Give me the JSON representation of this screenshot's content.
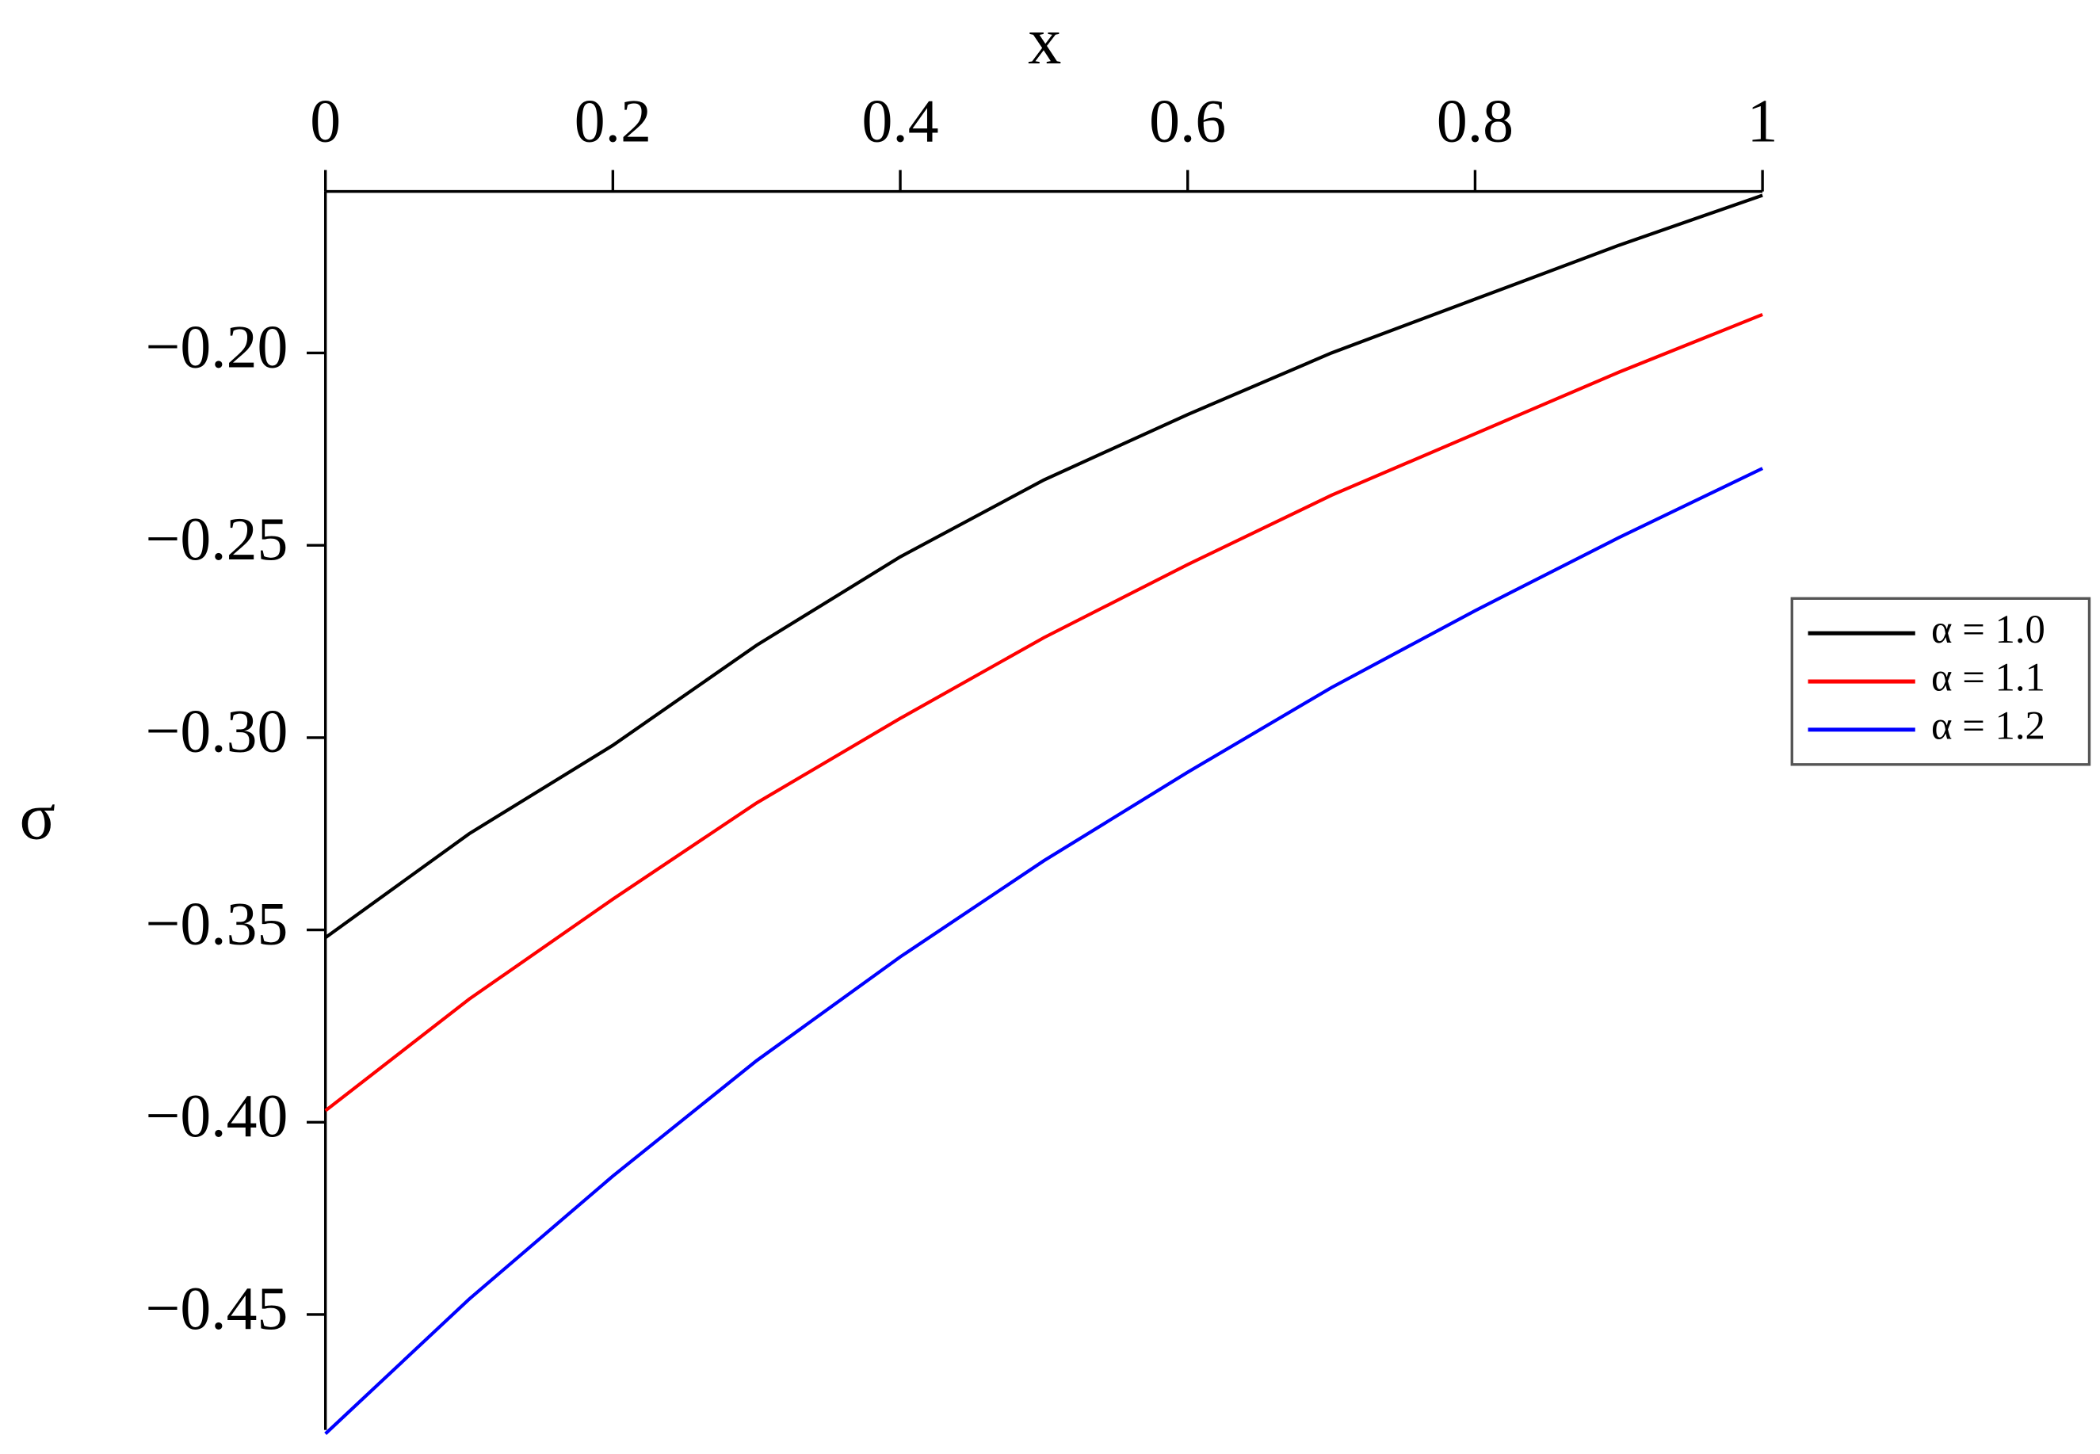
{
  "chart_data": {
    "type": "line",
    "xlabel": "x",
    "ylabel": "σ",
    "x": [
      0,
      0.1,
      0.2,
      0.3,
      0.4,
      0.5,
      0.6,
      0.7,
      0.8,
      0.9,
      1
    ],
    "series": [
      {
        "name": "α = 1.0",
        "color": "#000000",
        "values": [
          -0.352,
          -0.325,
          -0.302,
          -0.276,
          -0.253,
          -0.233,
          -0.216,
          -0.2,
          -0.186,
          -0.172,
          -0.159
        ]
      },
      {
        "name": "α = 1.1",
        "color": "#ff0000",
        "values": [
          -0.397,
          -0.368,
          -0.342,
          -0.317,
          -0.295,
          -0.274,
          -0.255,
          -0.237,
          -0.221,
          -0.205,
          -0.19
        ]
      },
      {
        "name": "α = 1.2",
        "color": "#0000ff",
        "values": [
          -0.481,
          -0.446,
          -0.414,
          -0.384,
          -0.357,
          -0.332,
          -0.309,
          -0.287,
          -0.267,
          -0.248,
          -0.23
        ]
      }
    ],
    "xlim": [
      0,
      1
    ],
    "xticks": [
      0,
      0.2,
      0.4,
      0.6,
      0.8,
      1
    ],
    "ylim": [
      -0.48,
      -0.158
    ],
    "yticks": [
      {
        "value": -0.2,
        "label": "−0.20"
      },
      {
        "value": -0.25,
        "label": "−0.25"
      },
      {
        "value": -0.3,
        "label": "−0.30"
      },
      {
        "value": -0.35,
        "label": "−0.35"
      },
      {
        "value": -0.4,
        "label": "−0.40"
      },
      {
        "value": -0.45,
        "label": "−0.45"
      }
    ],
    "legend": "right"
  }
}
